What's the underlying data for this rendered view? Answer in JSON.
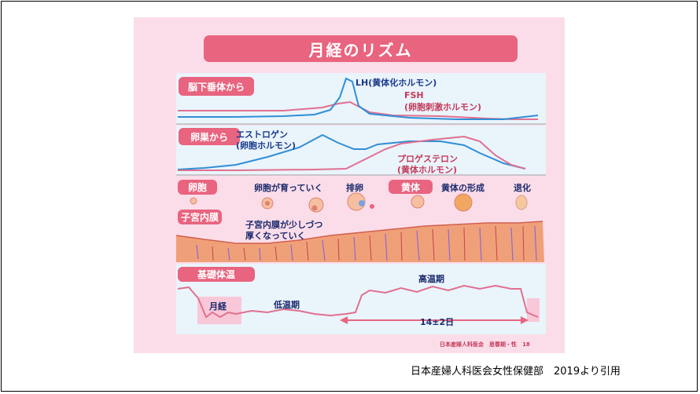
{
  "title": "月経のリズム",
  "sections": {
    "brain": "脳下垂体から",
    "ovary": "卵巣から",
    "follicle": "卵胞",
    "endometrium": "子宮内膜",
    "bbt": "基礎体温"
  },
  "hormones": {
    "lh": "LH(黄体化ホルモン)",
    "fsh_1": "FSH",
    "fsh_2": "(卵胞刺激ホルモン)",
    "estrogen_1": "エストロゲン",
    "estrogen_2": "(卵胞ホルモン)",
    "progesterone_1": "プロゲステロン",
    "progesterone_2": "(黄体ホルモン)"
  },
  "follicle_stages": {
    "growing": "卵胞が育っていく",
    "ovulation": "排卵",
    "corpus_luteum": "黄体",
    "formation": "黄体の形成",
    "regression": "退化"
  },
  "endometrium_note_1": "子宮内膜が少しづつ",
  "endometrium_note_2": "厚くなっていく",
  "temperature": {
    "high": "高温期",
    "low": "低温期",
    "menstruation": "月経",
    "duration": "14±2日"
  },
  "footer": "日本産婦人科医会　思春期・性　18",
  "citation": "日本産婦人科医会女性保健部　2019より引用",
  "colors": {
    "accent": "#e8647f",
    "blue_line": "#2f8fd6",
    "pink_line": "#e07090",
    "endometrium": "#f0a078"
  }
}
